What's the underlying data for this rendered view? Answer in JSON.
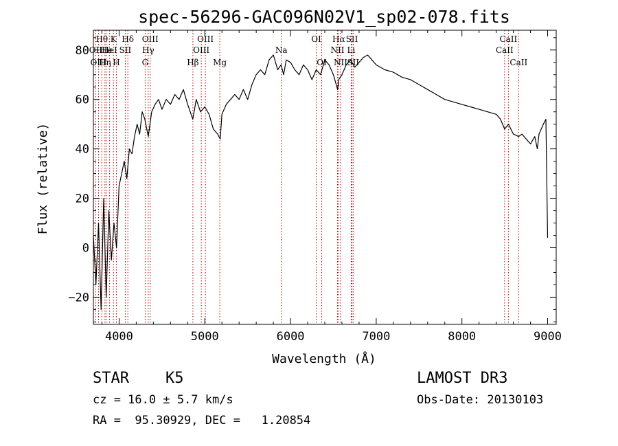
{
  "chart_data": {
    "type": "line",
    "title": "spec-56296-GAC096N02V1_sp02-078.fits",
    "xlabel": "Wavelength (Å)",
    "ylabel": "Flux (relative)",
    "xlim": [
      3700,
      9100
    ],
    "ylim": [
      -31,
      88
    ],
    "xticks": [
      4000,
      5000,
      6000,
      7000,
      8000,
      9000
    ],
    "yticks": [
      -20,
      0,
      20,
      40,
      60,
      80
    ],
    "ytick_labels": [
      "−20",
      "0",
      "20",
      "40",
      "60",
      "80"
    ],
    "series": [
      {
        "name": "flux",
        "x": [
          3700,
          3730,
          3760,
          3790,
          3820,
          3850,
          3880,
          3910,
          3940,
          3970,
          4000,
          4030,
          4060,
          4090,
          4120,
          4150,
          4180,
          4210,
          4240,
          4270,
          4300,
          4340,
          4380,
          4420,
          4460,
          4500,
          4550,
          4600,
          4650,
          4700,
          4750,
          4800,
          4860,
          4900,
          4950,
          5000,
          5050,
          5100,
          5150,
          5180,
          5200,
          5250,
          5300,
          5350,
          5400,
          5450,
          5500,
          5550,
          5600,
          5650,
          5700,
          5750,
          5800,
          5850,
          5890,
          5920,
          5950,
          6000,
          6050,
          6100,
          6150,
          6200,
          6250,
          6300,
          6350,
          6400,
          6450,
          6500,
          6550,
          6563,
          6600,
          6650,
          6700,
          6750,
          6800,
          6850,
          6900,
          6950,
          7000,
          7100,
          7200,
          7300,
          7400,
          7500,
          7600,
          7700,
          7800,
          7900,
          8000,
          8100,
          8200,
          8300,
          8400,
          8450,
          8498,
          8542,
          8600,
          8662,
          8700,
          8750,
          8800,
          8850,
          8880,
          8900,
          8950,
          8980,
          9000
        ],
        "y": [
          5,
          -15,
          10,
          -25,
          20,
          -20,
          15,
          -5,
          10,
          0,
          25,
          30,
          35,
          28,
          40,
          38,
          45,
          50,
          46,
          55,
          52,
          45,
          55,
          58,
          60,
          56,
          60,
          58,
          62,
          60,
          64,
          58,
          52,
          60,
          55,
          57,
          54,
          48,
          46,
          44,
          54,
          58,
          60,
          62,
          60,
          64,
          60,
          66,
          70,
          72,
          70,
          76,
          78,
          72,
          74,
          70,
          76,
          75,
          72,
          70,
          74,
          72,
          68,
          72,
          70,
          76,
          74,
          70,
          64,
          68,
          70,
          74,
          76,
          73,
          75,
          77,
          78,
          76,
          74,
          72,
          71,
          69,
          68,
          66,
          64,
          62,
          60,
          59,
          58,
          57,
          56,
          55,
          54,
          52,
          48,
          50,
          46,
          45,
          46,
          44,
          42,
          45,
          40,
          46,
          50,
          52,
          4
        ]
      }
    ],
    "line_markers": [
      {
        "label": "Hθ",
        "x": 3798,
        "row": 1
      },
      {
        "label": "OII",
        "x": 3727,
        "row": 2
      },
      {
        "label": "OIII",
        "x": 3760,
        "row": 3
      },
      {
        "label": "He",
        "x": 3850,
        "row": 2
      },
      {
        "label": "Hη",
        "x": 3835,
        "row": 3
      },
      {
        "label": "K",
        "x": 3934,
        "row": 1
      },
      {
        "label": "HeI",
        "x": 3889,
        "row": 2
      },
      {
        "label": "H",
        "x": 3968,
        "row": 3
      },
      {
        "label": "Hδ",
        "x": 4102,
        "row": 1
      },
      {
        "label": "SII",
        "x": 4072,
        "row": 2
      },
      {
        "label": "OIII",
        "x": 4363,
        "row": 1
      },
      {
        "label": "Hγ",
        "x": 4340,
        "row": 2
      },
      {
        "label": "G",
        "x": 4304,
        "row": 3
      },
      {
        "label": "Hβ",
        "x": 4861,
        "row": 3
      },
      {
        "label": "OIII",
        "x": 5007,
        "row": 1
      },
      {
        "label": "OIII",
        "x": 4959,
        "row": 2
      },
      {
        "label": "Mg",
        "x": 5175,
        "row": 3
      },
      {
        "label": "Na",
        "x": 5893,
        "row": 2
      },
      {
        "label": "OI",
        "x": 6300,
        "row": 1
      },
      {
        "label": "OI",
        "x": 6364,
        "row": 3
      },
      {
        "label": "Hα",
        "x": 6563,
        "row": 1
      },
      {
        "label": "NII",
        "x": 6548,
        "row": 2
      },
      {
        "label": "NII",
        "x": 6584,
        "row": 3
      },
      {
        "label": "SII",
        "x": 6717,
        "row": 1
      },
      {
        "label": "Li",
        "x": 6708,
        "row": 2
      },
      {
        "label": "SII",
        "x": 6731,
        "row": 3
      },
      {
        "label": "CaII",
        "x": 8542,
        "row": 1
      },
      {
        "label": "CaII",
        "x": 8498,
        "row": 2
      },
      {
        "label": "CaII",
        "x": 8662,
        "row": 3
      }
    ]
  },
  "info": {
    "object_class": "STAR",
    "subclass": "K5",
    "redshift_line": "cz = 16.0 ± 5.7 km/s",
    "coords_line": "RA =  95.30929, DEC =   1.20854",
    "survey": "LAMOST DR3",
    "obs_date_line": "Obs-Date: 20130103"
  },
  "colors": {
    "axes": "#000000",
    "spectrum": "#000000",
    "marker_lines": "#b30000"
  }
}
